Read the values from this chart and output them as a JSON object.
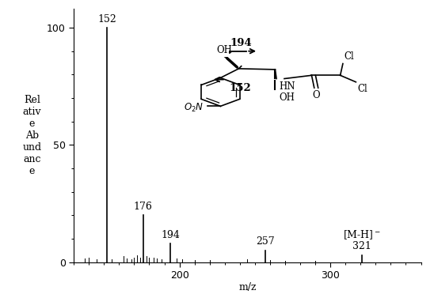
{
  "title": "",
  "xlabel": "m/z",
  "ylabel_lines": [
    "Rel",
    "ativ",
    "e",
    "Ab",
    "und",
    "anc",
    "e"
  ],
  "xlim": [
    130,
    360
  ],
  "ylim": [
    0,
    108
  ],
  "yticks": [
    0,
    50,
    100
  ],
  "xticks": [
    200,
    300
  ],
  "background_color": "#ffffff",
  "peaks": [
    {
      "mz": 152,
      "intensity": 100,
      "label": "152"
    },
    {
      "mz": 176,
      "intensity": 20,
      "label": "176"
    },
    {
      "mz": 194,
      "intensity": 8,
      "label": "194"
    },
    {
      "mz": 257,
      "intensity": 5,
      "label": "257"
    },
    {
      "mz": 321,
      "intensity": 3,
      "label": "321"
    }
  ],
  "minor_peaks": [
    {
      "mz": 137,
      "intensity": 1.5
    },
    {
      "mz": 140,
      "intensity": 2.0
    },
    {
      "mz": 145,
      "intensity": 1.2
    },
    {
      "mz": 155,
      "intensity": 1.2
    },
    {
      "mz": 163,
      "intensity": 2.5
    },
    {
      "mz": 165,
      "intensity": 1.5
    },
    {
      "mz": 168,
      "intensity": 1.2
    },
    {
      "mz": 170,
      "intensity": 1.8
    },
    {
      "mz": 172,
      "intensity": 3.0
    },
    {
      "mz": 174,
      "intensity": 2.0
    },
    {
      "mz": 178,
      "intensity": 2.5
    },
    {
      "mz": 180,
      "intensity": 2.0
    },
    {
      "mz": 183,
      "intensity": 2.0
    },
    {
      "mz": 185,
      "intensity": 1.5
    },
    {
      "mz": 188,
      "intensity": 1.2
    },
    {
      "mz": 198,
      "intensity": 1.5
    },
    {
      "mz": 202,
      "intensity": 1.2
    },
    {
      "mz": 210,
      "intensity": 1.0
    },
    {
      "mz": 220,
      "intensity": 0.8
    },
    {
      "mz": 245,
      "intensity": 1.2
    },
    {
      "mz": 260,
      "intensity": 0.8
    },
    {
      "mz": 270,
      "intensity": 0.6
    },
    {
      "mz": 290,
      "intensity": 0.6
    }
  ],
  "peak_color": "#000000",
  "text_color": "#000000",
  "font_size": 9
}
